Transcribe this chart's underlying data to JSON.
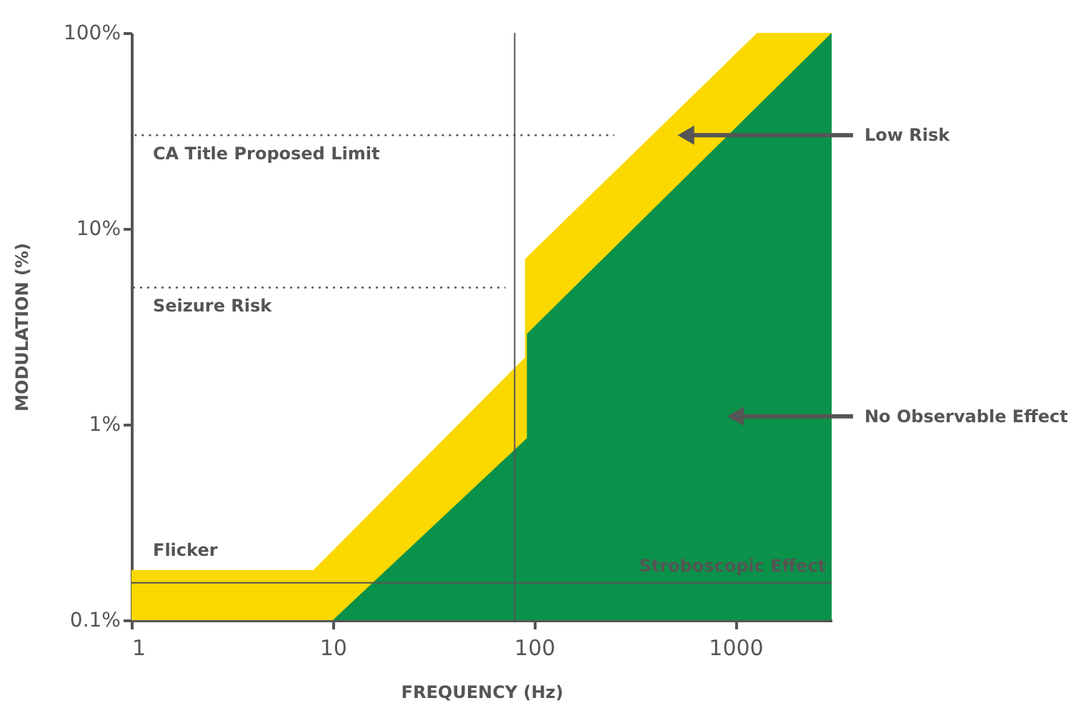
{
  "chart_data": {
    "type": "area",
    "xlabel": "FREQUENCY (Hz)",
    "ylabel": "MODULATION (%)",
    "log": "xy",
    "xlim": [
      1,
      3000
    ],
    "ylim": [
      0.1,
      100
    ],
    "xticks": [
      1,
      10,
      100,
      1000
    ],
    "yticks": [
      {
        "value": 0.1,
        "label": "0.1%"
      },
      {
        "value": 1,
        "label": "1%"
      },
      {
        "value": 10,
        "label": "10%"
      },
      {
        "value": 100,
        "label": "100%"
      }
    ],
    "grid": false,
    "series": [
      {
        "color": "#fad800",
        "x": [
          1,
          8,
          90,
          90,
          1280,
          3000
        ],
        "values": [
          0.18,
          0.18,
          2.2,
          7,
          100,
          100
        ]
      },
      {
        "color": "#0a914a",
        "x": [
          10,
          92,
          92,
          3000
        ],
        "values": [
          0.1,
          0.85,
          2.9,
          100
        ]
      },
      {
        "type": "line",
        "name": "CA Title Proposed Limit",
        "color": "#555555",
        "line_style": "dotted",
        "x": [
          1,
          250
        ],
        "values": [
          30,
          30
        ]
      },
      {
        "type": "line",
        "name": "Seizure Risk",
        "color": "#555555",
        "line_style": "dotted",
        "x": [
          1,
          72
        ],
        "values": [
          5,
          5
        ]
      }
    ],
    "ref_lines": [
      {
        "axis": "y",
        "value": 0.155,
        "label": "Stroboscopic Effect",
        "color": "#555555"
      },
      {
        "axis": "x",
        "value": 80,
        "color": "#555555"
      }
    ],
    "annotations": [
      "Flicker",
      {
        "text": "Low Risk",
        "x": 567,
        "y": 30
      },
      {
        "text": "No Observable Effect",
        "x": 1000,
        "y": 1.1
      }
    ]
  }
}
